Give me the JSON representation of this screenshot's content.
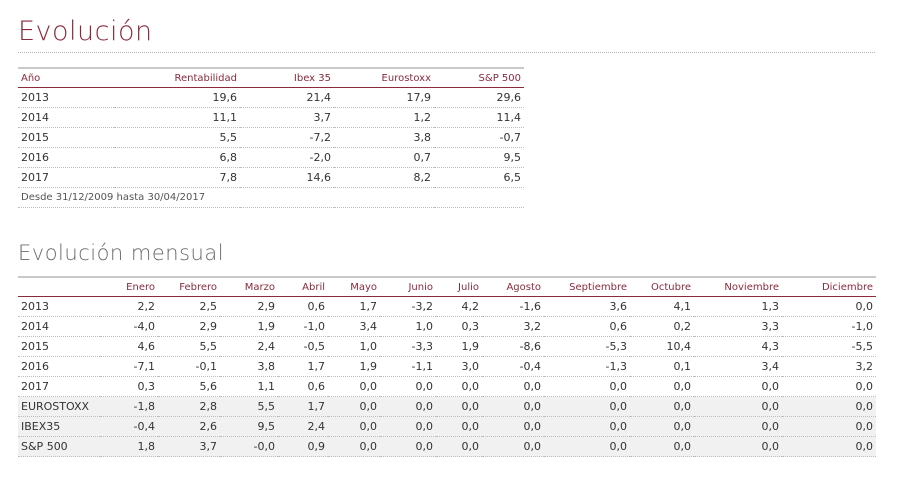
{
  "title": "Evolución",
  "annual": {
    "headers": [
      "Año",
      "Rentabilidad",
      "Ibex 35",
      "Eurostoxx",
      "S&P 500"
    ],
    "rows": [
      [
        "2013",
        "19,6",
        "21,4",
        "17,9",
        "29,6"
      ],
      [
        "2014",
        "11,1",
        "3,7",
        "1,2",
        "11,4"
      ],
      [
        "2015",
        "5,5",
        "-7,2",
        "3,8",
        "-0,7"
      ],
      [
        "2016",
        "6,8",
        "-2,0",
        "0,7",
        "9,5"
      ],
      [
        "2017",
        "7,8",
        "14,6",
        "8,2",
        "6,5"
      ]
    ],
    "note": "Desde 31/12/2009 hasta 30/04/2017"
  },
  "monthly_title": "Evolución mensual",
  "monthly": {
    "headers": [
      "",
      "Enero",
      "Febrero",
      "Marzo",
      "Abril",
      "Mayo",
      "Junio",
      "Julio",
      "Agosto",
      "Septiembre",
      "Octubre",
      "Noviembre",
      "Diciembre"
    ],
    "rows": [
      [
        "2013",
        "2,2",
        "2,5",
        "2,9",
        "0,6",
        "1,7",
        "-3,2",
        "4,2",
        "-1,6",
        "3,6",
        "4,1",
        "1,3",
        "0,0"
      ],
      [
        "2014",
        "-4,0",
        "2,9",
        "1,9",
        "-1,0",
        "3,4",
        "1,0",
        "0,3",
        "3,2",
        "0,6",
        "0,2",
        "3,3",
        "-1,0"
      ],
      [
        "2015",
        "4,6",
        "5,5",
        "2,4",
        "-0,5",
        "1,0",
        "-3,3",
        "1,9",
        "-8,6",
        "-5,3",
        "10,4",
        "4,3",
        "-5,5"
      ],
      [
        "2016",
        "-7,1",
        "-0,1",
        "3,8",
        "1,7",
        "1,9",
        "-1,1",
        "3,0",
        "-0,4",
        "-1,3",
        "0,1",
        "3,4",
        "3,2"
      ],
      [
        "2017",
        "0,3",
        "5,6",
        "1,1",
        "0,6",
        "0,0",
        "0,0",
        "0,0",
        "0,0",
        "0,0",
        "0,0",
        "0,0",
        "0,0"
      ]
    ],
    "index_rows": [
      [
        "EUROSTOXX",
        "-1,8",
        "2,8",
        "5,5",
        "1,7",
        "0,0",
        "0,0",
        "0,0",
        "0,0",
        "0,0",
        "0,0",
        "0,0",
        "0,0"
      ],
      [
        "IBEX35",
        "-0,4",
        "2,6",
        "9,5",
        "2,4",
        "0,0",
        "0,0",
        "0,0",
        "0,0",
        "0,0",
        "0,0",
        "0,0",
        "0,0"
      ],
      [
        "S&P 500",
        "1,8",
        "3,7",
        "-0,0",
        "0,9",
        "0,0",
        "0,0",
        "0,0",
        "0,0",
        "0,0",
        "0,0",
        "0,0",
        "0,0"
      ]
    ]
  }
}
